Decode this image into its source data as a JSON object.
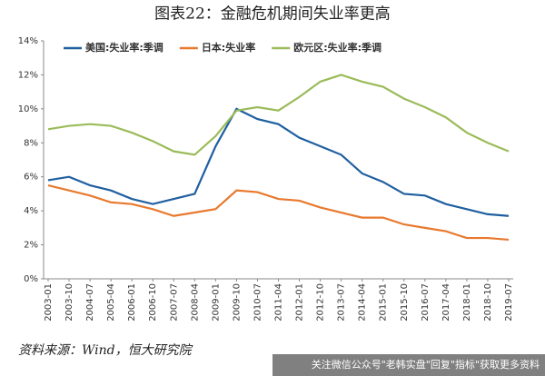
{
  "chart_data": {
    "type": "line",
    "title": "图表22：金融危机期间失业率更高",
    "source": "资料来源：Wind，恒大研究院",
    "watermark": "关注微信公众号\"老韩实盘\"回复\"指标\"获取更多资料",
    "categories": [
      "2003-01",
      "2003-10",
      "2004-07",
      "2005-04",
      "2006-01",
      "2006-10",
      "2007-07",
      "2008-04",
      "2009-01",
      "2009-10",
      "2010-07",
      "2011-04",
      "2012-01",
      "2012-10",
      "2013-07",
      "2014-04",
      "2015-01",
      "2015-10",
      "2016-07",
      "2017-04",
      "2018-01",
      "2018-10",
      "2019-07"
    ],
    "series": [
      {
        "name": "美国:失业率:季调",
        "color": "#1f5fa0",
        "values": [
          5.8,
          6.0,
          5.5,
          5.2,
          4.7,
          4.4,
          4.7,
          5.0,
          7.8,
          10.0,
          9.4,
          9.1,
          8.3,
          7.8,
          7.3,
          6.2,
          5.7,
          5.0,
          4.9,
          4.4,
          4.1,
          3.8,
          3.7
        ]
      },
      {
        "name": "日本:失业率",
        "color": "#e8792e",
        "values": [
          5.5,
          5.2,
          4.9,
          4.5,
          4.4,
          4.1,
          3.7,
          3.9,
          4.1,
          5.2,
          5.1,
          4.7,
          4.6,
          4.2,
          3.9,
          3.6,
          3.6,
          3.2,
          3.0,
          2.8,
          2.4,
          2.4,
          2.3
        ]
      },
      {
        "name": "欧元区:失业率:季调",
        "color": "#9bbb59",
        "values": [
          8.8,
          9.0,
          9.1,
          9.0,
          8.6,
          8.1,
          7.5,
          7.3,
          8.4,
          9.9,
          10.1,
          9.9,
          10.7,
          11.6,
          12.0,
          11.6,
          11.3,
          10.6,
          10.1,
          9.5,
          8.6,
          8.0,
          7.5
        ]
      }
    ],
    "ylim": [
      0,
      14
    ],
    "yticks": [
      {
        "value": 0,
        "label": "0%"
      },
      {
        "value": 2,
        "label": "2%"
      },
      {
        "value": 4,
        "label": "4%"
      },
      {
        "value": 6,
        "label": "6%"
      },
      {
        "value": 8,
        "label": "8%"
      },
      {
        "value": 10,
        "label": "10%"
      },
      {
        "value": 12,
        "label": "12%"
      },
      {
        "value": 14,
        "label": "14%"
      }
    ],
    "legend": "top-left"
  }
}
